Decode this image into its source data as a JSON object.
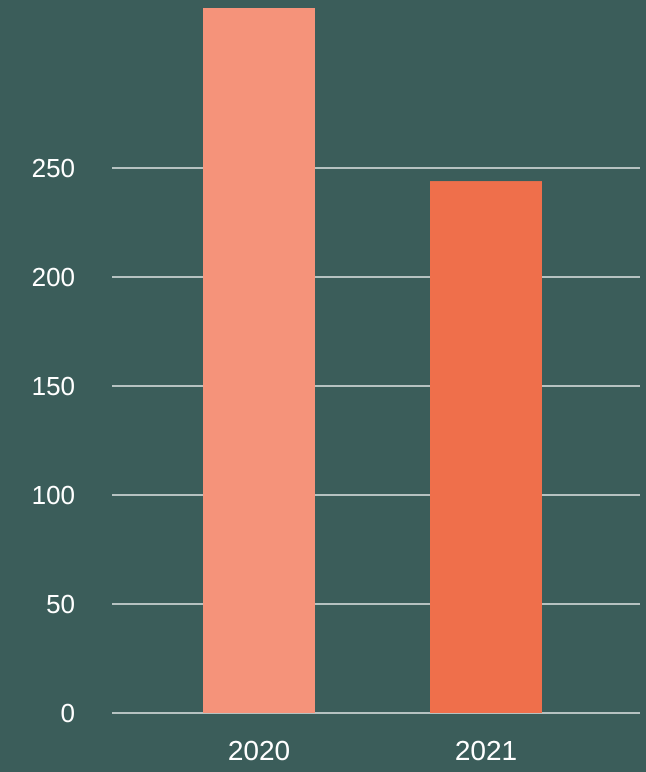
{
  "chart_data": {
    "type": "bar",
    "title": "",
    "xlabel": "",
    "ylabel": "",
    "categories": [
      "2020",
      "2021"
    ],
    "values": [
      325,
      244
    ],
    "bar_colors": [
      "#f5937a",
      "#ef6f4b"
    ],
    "ylim": [
      0,
      325
    ],
    "yticks": [
      0,
      50,
      100,
      150,
      200,
      250
    ],
    "ytick_labels": [
      "0",
      "50",
      "100",
      "150",
      "200",
      "250"
    ],
    "grid": true,
    "legend": "none"
  },
  "colors": {
    "background": "#3b5d5a",
    "gridline": "#ffffff",
    "text": "#ffffff"
  }
}
